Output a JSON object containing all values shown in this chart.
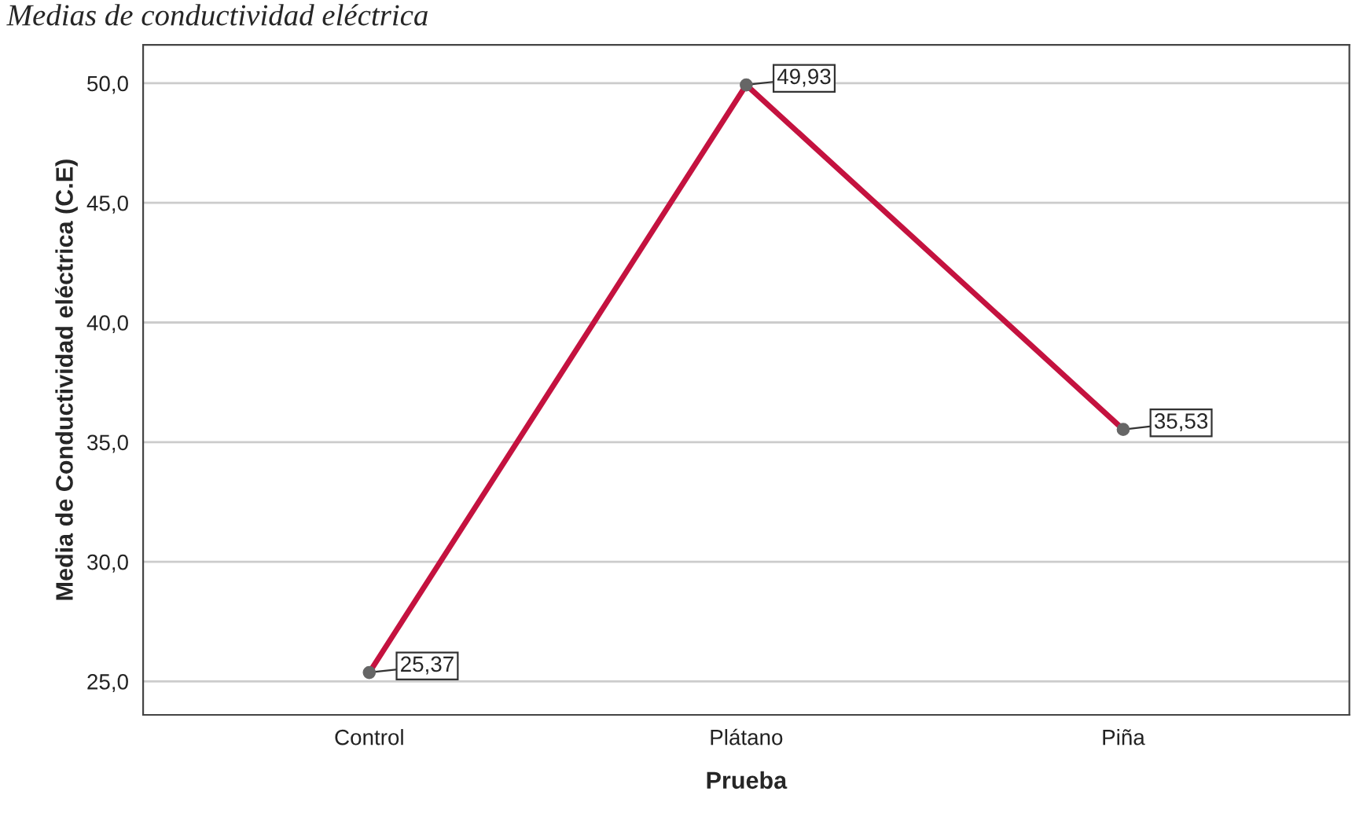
{
  "chart_data": {
    "type": "line",
    "title": "Medias de conductividad eléctrica",
    "xlabel": "Prueba",
    "ylabel": "Media de Conductividad eléctrica (C.E)",
    "categories": [
      "Control",
      "Plátano",
      "Piña"
    ],
    "series": [
      {
        "color": "#c4123f",
        "values": [
          25.37,
          49.93,
          35.53
        ]
      }
    ],
    "value_labels": [
      "25,37",
      "49,93",
      "35,53"
    ],
    "ylim": [
      23.6,
      51.6
    ],
    "yticks": [
      {
        "value": 25,
        "label": "25,0"
      },
      {
        "value": 30,
        "label": "30,0"
      },
      {
        "value": 35,
        "label": "35,0"
      },
      {
        "value": 40,
        "label": "40,0"
      },
      {
        "value": 45,
        "label": "45,0"
      },
      {
        "value": 50,
        "label": "50,0"
      }
    ],
    "grid": "y",
    "marker": "circle",
    "line_style": "solid",
    "legend": false
  }
}
